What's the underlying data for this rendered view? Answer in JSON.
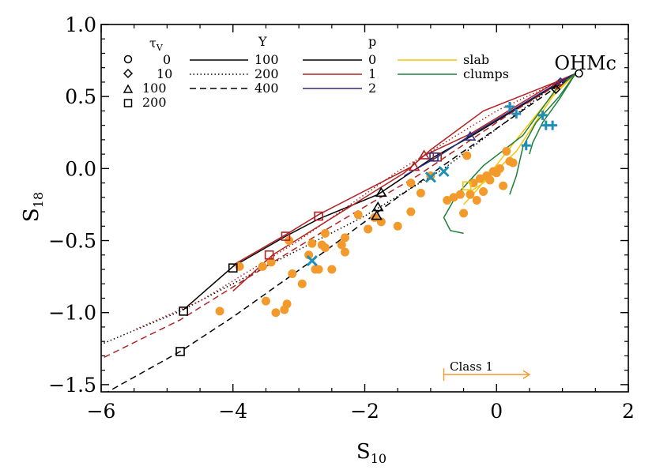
{
  "chart_data": {
    "type": "scatter",
    "panel_label": "OHMc",
    "xlabel": "S",
    "xlabel_sub": "10",
    "ylabel": "S",
    "ylabel_sub": "18",
    "xlim": [
      -6,
      2
    ],
    "ylim": [
      -1.55,
      1.0
    ],
    "xticks": [
      -6,
      -4,
      -2,
      0,
      2
    ],
    "yticks": [
      -1.5,
      -1.0,
      -0.5,
      0.0,
      0.5,
      1.0
    ],
    "xtick_labels": [
      "−6",
      "−4",
      "−2",
      "0",
      "2"
    ],
    "ytick_labels": [
      "−1.5",
      "−1.0",
      "−0.5",
      "0.0",
      "0.5",
      "1.0"
    ],
    "legend": {
      "tau_header": "τ",
      "tau_sub": "V",
      "tau_values": [
        "0",
        "10",
        "100",
        "200"
      ],
      "tau_markers": [
        "circle",
        "diamond",
        "triangle",
        "square"
      ],
      "y_header": "Y",
      "y_values": [
        "100",
        "200",
        "400"
      ],
      "y_styles": [
        "solid",
        "dotted",
        "dashed"
      ],
      "p_header": "p",
      "p_values": [
        "0",
        "1",
        "2"
      ],
      "p_colors": [
        "#000000",
        "#b22222",
        "#2b2b80"
      ],
      "geom_labels": [
        "slab",
        "clumps"
      ],
      "geom_colors": [
        "#f5c400",
        "#1e7f3a"
      ]
    },
    "class_label": "Class 1",
    "class_range": [
      -0.8,
      0.5
    ],
    "class_y": -1.43,
    "model_curves": [
      {
        "color": "#000000",
        "dash": "solid",
        "points": [
          [
            1.2,
            0.66
          ],
          [
            0.9,
            0.58
          ],
          [
            -0.4,
            0.22
          ],
          [
            -0.95,
            0.08
          ],
          [
            -1.8,
            -0.18
          ],
          [
            -2.7,
            -0.35
          ],
          [
            -3.2,
            -0.47
          ],
          [
            -4.0,
            -0.68
          ],
          [
            -4.75,
            -0.98
          ]
        ]
      },
      {
        "color": "#000000",
        "dash": "dotted",
        "points": [
          [
            1.2,
            0.66
          ],
          [
            0.8,
            0.55
          ],
          [
            -0.8,
            0.0
          ],
          [
            -2.0,
            -0.33
          ],
          [
            -3.5,
            -0.68
          ],
          [
            -4.8,
            -0.99
          ],
          [
            -6.0,
            -1.22
          ]
        ]
      },
      {
        "color": "#000000",
        "dash": "dashed",
        "points": [
          [
            1.2,
            0.66
          ],
          [
            0.7,
            0.5
          ],
          [
            -0.5,
            0.12
          ],
          [
            -1.5,
            -0.2
          ],
          [
            -2.8,
            -0.64
          ],
          [
            -4.0,
            -1.03
          ],
          [
            -4.8,
            -1.27
          ],
          [
            -5.9,
            -1.55
          ]
        ]
      },
      {
        "color": "#b22222",
        "dash": "solid",
        "points": [
          [
            1.2,
            0.66
          ],
          [
            0.9,
            0.6
          ],
          [
            -0.4,
            0.24
          ],
          [
            -1.1,
            0.09
          ],
          [
            -1.3,
            0.01
          ],
          [
            -2.7,
            -0.32
          ],
          [
            -3.2,
            -0.46
          ],
          [
            -4.0,
            -0.67
          ]
        ]
      },
      {
        "color": "#b22222",
        "dash": "solid",
        "points": [
          [
            1.2,
            0.66
          ],
          [
            0.9,
            0.6
          ],
          [
            -0.2,
            0.4
          ],
          [
            -1.0,
            0.13
          ],
          [
            -1.4,
            -0.03
          ],
          [
            -3.4,
            -0.6
          ],
          [
            -4.0,
            -0.85
          ]
        ]
      },
      {
        "color": "#b22222",
        "dash": "dotted",
        "points": [
          [
            1.2,
            0.66
          ],
          [
            0.0,
            0.4
          ],
          [
            -1.5,
            -0.02
          ],
          [
            -3.0,
            -0.5
          ],
          [
            -4.5,
            -0.92
          ],
          [
            -5.5,
            -1.12
          ]
        ]
      },
      {
        "color": "#b22222",
        "dash": "dashed",
        "points": [
          [
            1.2,
            0.66
          ],
          [
            0.2,
            0.38
          ],
          [
            -1.2,
            -0.05
          ],
          [
            -2.5,
            -0.4
          ],
          [
            -3.5,
            -0.68
          ],
          [
            -4.8,
            -1.05
          ],
          [
            -6.0,
            -1.32
          ]
        ]
      },
      {
        "color": "#2b2b80",
        "dash": "solid",
        "points": [
          [
            1.2,
            0.66
          ],
          [
            0.95,
            0.6
          ],
          [
            -0.4,
            0.23
          ],
          [
            -0.9,
            0.08
          ],
          [
            -1.4,
            -0.05
          ]
        ]
      },
      {
        "color": "#f5c400",
        "dash": "solid",
        "points": [
          [
            1.2,
            0.66
          ],
          [
            0.9,
            0.54
          ],
          [
            0.3,
            0.2
          ],
          [
            -0.3,
            -0.15
          ],
          [
            -0.5,
            -0.25
          ]
        ]
      },
      {
        "color": "#f5c400",
        "dash": "solid",
        "points": [
          [
            1.2,
            0.66
          ],
          [
            0.85,
            0.5
          ],
          [
            0.3,
            0.12
          ],
          [
            -0.2,
            -0.1
          ],
          [
            -0.4,
            -0.16
          ]
        ]
      },
      {
        "color": "#1e7f3a",
        "dash": "solid",
        "points": [
          [
            1.2,
            0.66
          ],
          [
            0.9,
            0.55
          ],
          [
            0.4,
            0.23
          ],
          [
            -0.2,
            0.02
          ],
          [
            -0.6,
            -0.18
          ],
          [
            -0.8,
            -0.34
          ],
          [
            -0.7,
            -0.43
          ],
          [
            -0.5,
            -0.45
          ]
        ]
      },
      {
        "color": "#1e7f3a",
        "dash": "solid",
        "points": [
          [
            1.2,
            0.66
          ],
          [
            0.95,
            0.5
          ],
          [
            0.6,
            0.32
          ],
          [
            0.4,
            0.15
          ],
          [
            0.3,
            -0.05
          ],
          [
            0.2,
            -0.18
          ]
        ]
      },
      {
        "color": "#1e7f3a",
        "dash": "solid",
        "points": [
          [
            1.2,
            0.66
          ],
          [
            0.95,
            0.48
          ],
          [
            0.7,
            0.32
          ],
          [
            0.55,
            0.18
          ],
          [
            0.5,
            0.1
          ]
        ]
      }
    ],
    "model_markers": [
      {
        "shape": "circle",
        "color": "#000000",
        "x": 1.25,
        "y": 0.66
      },
      {
        "shape": "diamond",
        "color": "#2b2b80",
        "x": 0.97,
        "y": 0.6
      },
      {
        "shape": "diamond",
        "color": "#b22222",
        "x": 0.92,
        "y": 0.58
      },
      {
        "shape": "diamond",
        "color": "#000000",
        "x": 0.9,
        "y": 0.55
      },
      {
        "shape": "square",
        "color": "#f5c400",
        "x": -0.45,
        "y": -0.12
      },
      {
        "shape": "triangle",
        "color": "#2b2b80",
        "x": -0.4,
        "y": 0.22
      },
      {
        "shape": "triangle",
        "color": "#b22222",
        "x": -1.1,
        "y": 0.09
      },
      {
        "shape": "triangle",
        "color": "#b22222",
        "x": -1.25,
        "y": 0.01
      },
      {
        "shape": "square",
        "color": "#b22222",
        "x": -0.9,
        "y": 0.08
      },
      {
        "shape": "square",
        "color": "#2b2b80",
        "x": -0.95,
        "y": 0.08
      },
      {
        "shape": "triangle",
        "color": "#000000",
        "x": -1.75,
        "y": -0.17
      },
      {
        "shape": "triangle",
        "color": "#000000",
        "x": -1.8,
        "y": -0.27
      },
      {
        "shape": "triangle",
        "color": "#000000",
        "x": -1.82,
        "y": -0.33
      },
      {
        "shape": "square",
        "color": "#b22222",
        "x": -2.7,
        "y": -0.33
      },
      {
        "shape": "square",
        "color": "#b22222",
        "x": -3.2,
        "y": -0.47
      },
      {
        "shape": "square",
        "color": "#b22222",
        "x": -3.45,
        "y": -0.6
      },
      {
        "shape": "square",
        "color": "#000000",
        "x": -4.0,
        "y": -0.69
      },
      {
        "shape": "square",
        "color": "#000000",
        "x": -4.75,
        "y": -0.99
      },
      {
        "shape": "square",
        "color": "#000000",
        "x": -4.8,
        "y": -1.27
      }
    ],
    "observed_points": {
      "color": "#f39a2c",
      "points": [
        [
          -4.2,
          -0.99
        ],
        [
          -3.9,
          -0.68
        ],
        [
          -3.55,
          -0.68
        ],
        [
          -3.42,
          -0.65
        ],
        [
          -3.5,
          -0.92
        ],
        [
          -3.35,
          -1.0
        ],
        [
          -3.22,
          -0.98
        ],
        [
          -3.18,
          -0.94
        ],
        [
          -3.1,
          -0.73
        ],
        [
          -3.15,
          -0.5
        ],
        [
          -2.95,
          -0.8
        ],
        [
          -2.85,
          -0.6
        ],
        [
          -2.8,
          -0.52
        ],
        [
          -2.75,
          -0.7
        ],
        [
          -2.7,
          -0.7
        ],
        [
          -2.65,
          -0.53
        ],
        [
          -2.6,
          -0.55
        ],
        [
          -2.6,
          -0.45
        ],
        [
          -2.5,
          -0.7
        ],
        [
          -2.35,
          -0.53
        ],
        [
          -2.3,
          -0.48
        ],
        [
          -2.3,
          -0.58
        ],
        [
          -2.1,
          -0.32
        ],
        [
          -1.95,
          -0.42
        ],
        [
          -1.85,
          -0.34
        ],
        [
          -1.75,
          -0.37
        ],
        [
          -1.5,
          -0.4
        ],
        [
          -1.3,
          -0.3
        ],
        [
          -1.3,
          -0.1
        ],
        [
          -1.15,
          -0.17
        ],
        [
          -1.0,
          -0.05
        ],
        [
          -0.75,
          -0.22
        ],
        [
          -0.65,
          -0.2
        ],
        [
          -0.55,
          -0.18
        ],
        [
          -0.45,
          0.09
        ],
        [
          -0.4,
          -0.18
        ],
        [
          -0.35,
          -0.1
        ],
        [
          -0.3,
          -0.22
        ],
        [
          -0.25,
          -0.07
        ],
        [
          -0.2,
          -0.16
        ],
        [
          -0.15,
          -0.05
        ],
        [
          -0.1,
          -0.08
        ],
        [
          -0.05,
          -0.02
        ],
        [
          0.0,
          -0.03
        ],
        [
          0.05,
          0.0
        ],
        [
          0.1,
          -0.12
        ],
        [
          0.15,
          0.12
        ],
        [
          0.2,
          0.05
        ],
        [
          0.25,
          0.04
        ],
        [
          -0.5,
          -0.31
        ]
      ]
    },
    "cross_points": {
      "color": "#1f8fb5",
      "points": [
        [
          -2.8,
          -0.64
        ],
        [
          -1.0,
          -0.06
        ],
        [
          -0.8,
          -0.02
        ],
        [
          0.2,
          0.43
        ],
        [
          0.3,
          0.38
        ],
        [
          0.45,
          0.16
        ],
        [
          0.7,
          0.37
        ],
        [
          0.75,
          0.3
        ],
        [
          0.85,
          0.3
        ]
      ]
    }
  }
}
